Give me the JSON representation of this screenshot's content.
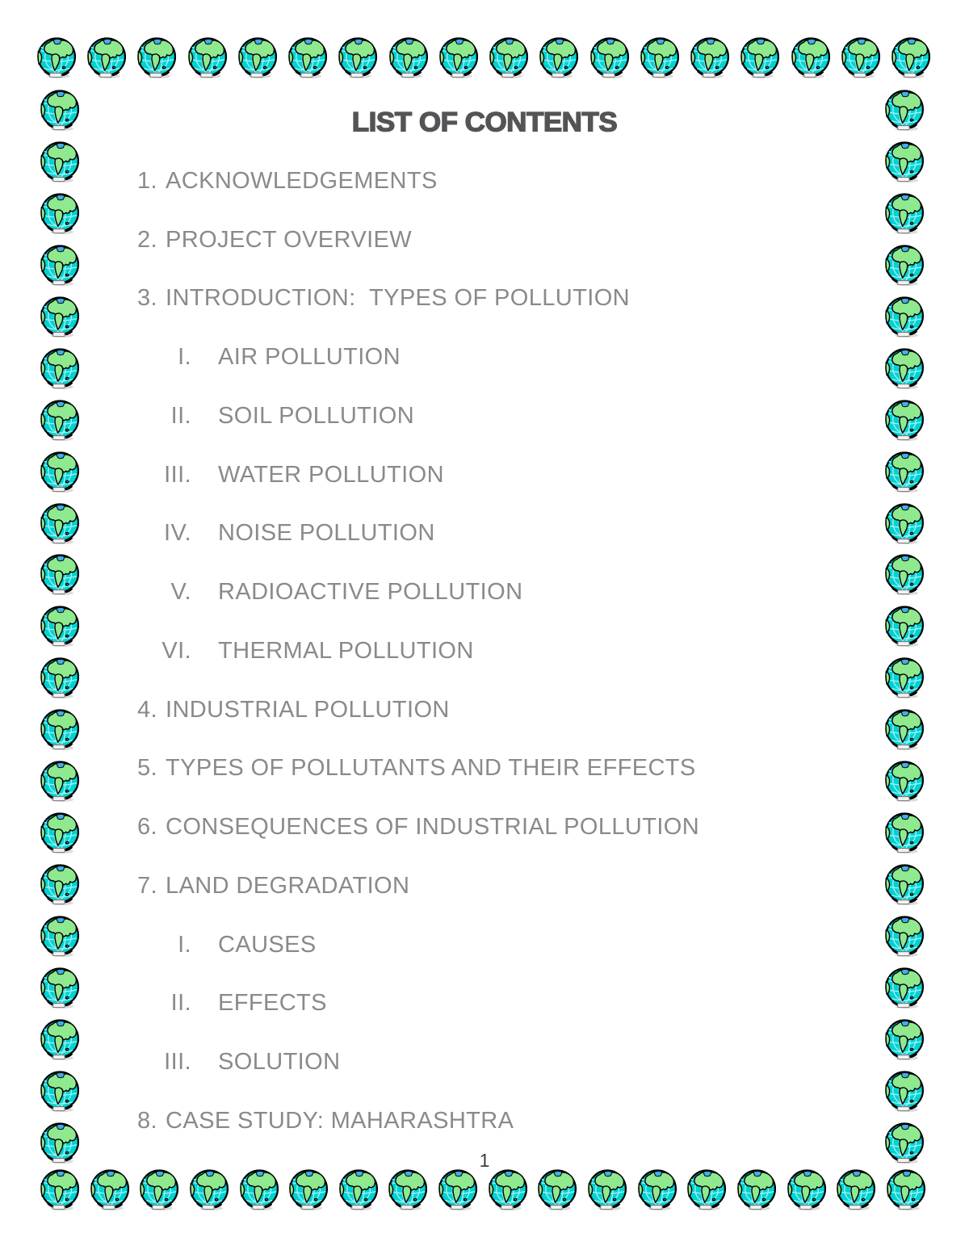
{
  "page": {
    "title": "LIST OF CONTENTS",
    "page_number": "1"
  },
  "contents": {
    "items": [
      {
        "marker": "1.",
        "label": "ACKNOWLEDGEMENTS",
        "level": 1
      },
      {
        "marker": "2.",
        "label": "PROJECT OVERVIEW",
        "level": 1
      },
      {
        "marker": "3.",
        "label": "INTRODUCTION:  TYPES OF POLLUTION",
        "level": 1
      },
      {
        "marker": "I.",
        "label": "AIR POLLUTION",
        "level": 2
      },
      {
        "marker": "II.",
        "label": "SOIL POLLUTION",
        "level": 2
      },
      {
        "marker": "III.",
        "label": "WATER POLLUTION",
        "level": 2
      },
      {
        "marker": "IV.",
        "label": "NOISE POLLUTION",
        "level": 2
      },
      {
        "marker": "V.",
        "label": "RADIOACTIVE POLLUTION",
        "level": 2
      },
      {
        "marker": "VI.",
        "label": "THERMAL POLLUTION",
        "level": 2
      },
      {
        "marker": "4.",
        "label": "INDUSTRIAL POLLUTION",
        "level": 1
      },
      {
        "marker": "5.",
        "label": "TYPES OF POLLUTANTS AND THEIR EFFECTS",
        "level": 1
      },
      {
        "marker": "6.",
        "label": "CONSEQUENCES OF INDUSTRIAL POLLUTION",
        "level": 1
      },
      {
        "marker": "7.",
        "label": "LAND DEGRADATION",
        "level": 1
      },
      {
        "marker": "I.",
        "label": "CAUSES",
        "level": 2
      },
      {
        "marker": "II.",
        "label": "EFFECTS",
        "level": 2
      },
      {
        "marker": "III.",
        "label": "SOLUTION",
        "level": 2
      },
      {
        "marker": "8.",
        "label": "CASE STUDY: MAHARASHTRA",
        "level": 1
      }
    ]
  },
  "border": {
    "icon": "globe-icon",
    "colors": {
      "ocean": "#00d2d2",
      "land": "#8fe98f",
      "grid": "#9ff1f1",
      "outline": "#000000",
      "pole": "#3fb0e8",
      "base": "#f2f2f2"
    }
  },
  "text_colors": {
    "title": "#545456",
    "items": "#8a8a8a",
    "page_number": "#3f3f3f"
  }
}
